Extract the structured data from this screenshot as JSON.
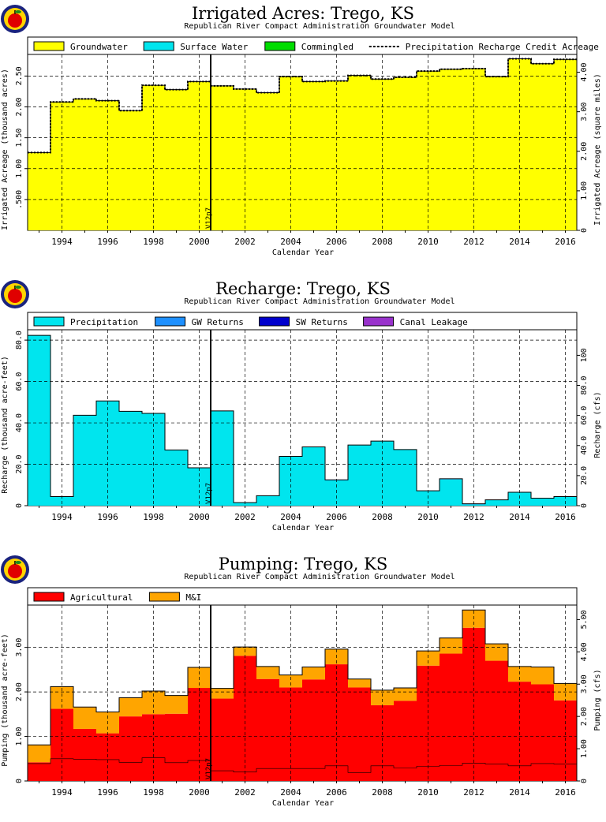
{
  "version_label": "V12p7",
  "x_tick_labels": [
    "1994",
    "1996",
    "1998",
    "2000",
    "2002",
    "2004",
    "2006",
    "2008",
    "2010",
    "2012",
    "2014",
    "2016"
  ],
  "colors": {
    "groundwater": "#ffff00",
    "surface_water": "#00e5ee",
    "commingled": "#00dd00",
    "precipitation": "#00e5ee",
    "gw_returns": "#1e90ff",
    "sw_returns": "#0000cd",
    "canal_leakage": "#9932cc",
    "agricultural": "#ff0000",
    "mi": "#ffa500"
  },
  "chart_data": [
    {
      "type": "bar",
      "title": "Irrigated Acres: Trego, KS",
      "subtitle": "Republican River Compact Administration Groundwater Model",
      "xlabel": "Calendar Year",
      "ylabel": "Irrigated Acreage (thousand acres)",
      "y2label": "Irrigated Acreage (square miles)",
      "x": [
        1993,
        1994,
        1995,
        1996,
        1997,
        1998,
        1999,
        2000,
        2001,
        2002,
        2003,
        2004,
        2005,
        2006,
        2007,
        2008,
        2009,
        2010,
        2011,
        2012,
        2013,
        2014,
        2015,
        2016
      ],
      "xlim": [
        1992.5,
        2016.5
      ],
      "ylim": [
        0,
        2.85
      ],
      "y2lim": [
        0,
        4.45
      ],
      "yticks": [
        ".500",
        "1.00",
        "1.50",
        "2.00",
        "2.50"
      ],
      "y2ticks": [
        "0",
        "1.00",
        "2.00",
        "3.00",
        "4.00"
      ],
      "grid": true,
      "legend": [
        "Groundwater",
        "Surface Water",
        "Commingled",
        "Precipitation Recharge Credit Acreage"
      ],
      "series": [
        {
          "name": "Groundwater",
          "values": [
            1.26,
            2.08,
            2.13,
            2.1,
            1.94,
            2.35,
            2.28,
            2.41,
            2.34,
            2.29,
            2.23,
            2.49,
            2.41,
            2.42,
            2.51,
            2.45,
            2.48,
            2.58,
            2.61,
            2.62,
            2.49,
            2.78,
            2.7,
            2.77
          ]
        },
        {
          "name": "Surface Water",
          "values": [
            0,
            0,
            0,
            0,
            0,
            0,
            0,
            0,
            0,
            0,
            0,
            0,
            0,
            0,
            0,
            0,
            0,
            0,
            0,
            0,
            0,
            0,
            0,
            0
          ]
        },
        {
          "name": "Commingled",
          "values": [
            0,
            0,
            0,
            0,
            0,
            0,
            0,
            0,
            0,
            0,
            0,
            0,
            0,
            0,
            0,
            0,
            0,
            0,
            0,
            0,
            0,
            0,
            0,
            0
          ]
        },
        {
          "name": "Precipitation Recharge Credit Acreage",
          "values": [
            1.26,
            2.08,
            2.13,
            2.1,
            1.94,
            2.35,
            2.28,
            2.41,
            2.34,
            2.29,
            2.23,
            2.49,
            2.41,
            2.42,
            2.51,
            2.45,
            2.48,
            2.58,
            2.61,
            2.62,
            2.49,
            2.78,
            2.7,
            2.77
          ]
        }
      ]
    },
    {
      "type": "bar",
      "title": "Recharge: Trego, KS",
      "subtitle": "Republican River Compact Administration Groundwater Model",
      "xlabel": "Calendar Year",
      "ylabel": "Recharge (thousand acre-feet)",
      "y2label": "Recharge (cfs)",
      "x": [
        1993,
        1994,
        1995,
        1996,
        1997,
        1998,
        1999,
        2000,
        2001,
        2002,
        2003,
        2004,
        2005,
        2006,
        2007,
        2008,
        2009,
        2010,
        2011,
        2012,
        2013,
        2014,
        2015,
        2016
      ],
      "xlim": [
        1992.5,
        2016.5
      ],
      "ylim": [
        0,
        85
      ],
      "y2lim": [
        0,
        117
      ],
      "yticks": [
        "0",
        "20.0",
        "40.0",
        "60.0",
        "80.0"
      ],
      "y2ticks": [
        "0",
        "20.0",
        "40.0",
        "60.0",
        "80.0",
        "100"
      ],
      "grid": true,
      "legend": [
        "Precipitation",
        "GW Returns",
        "SW Returns",
        "Canal Leakage"
      ],
      "series": [
        {
          "name": "Precipitation",
          "values": [
            82.3,
            4.4,
            43.7,
            50.6,
            45.6,
            44.6,
            26.9,
            18.3,
            45.8,
            1.5,
            4.8,
            23.8,
            28.4,
            12.2,
            29.3,
            31.2,
            27.1,
            7.2,
            12.7,
            0.6,
            2.8,
            6.5,
            3.6,
            4.4
          ]
        },
        {
          "name": "GW Returns",
          "values": [
            0,
            0,
            0,
            0,
            0,
            0,
            0,
            0,
            0,
            0,
            0,
            0,
            0,
            0.3,
            0,
            0,
            0,
            0,
            0.3,
            0.3,
            0,
            0,
            0,
            0
          ]
        },
        {
          "name": "SW Returns",
          "values": [
            0,
            0,
            0,
            0,
            0,
            0,
            0,
            0,
            0,
            0,
            0,
            0,
            0,
            0,
            0,
            0,
            0,
            0,
            0,
            0,
            0,
            0,
            0,
            0
          ]
        },
        {
          "name": "Canal Leakage",
          "values": [
            0,
            0,
            0,
            0,
            0,
            0,
            0,
            0,
            0,
            0,
            0,
            0,
            0,
            0,
            0,
            0,
            0,
            0,
            0,
            0,
            0,
            0,
            0,
            0
          ]
        }
      ]
    },
    {
      "type": "bar",
      "title": "Pumping: Trego, KS",
      "subtitle": "Republican River Compact Administration Groundwater Model",
      "xlabel": "Calendar Year",
      "ylabel": "Pumping (thousand acre-feet)",
      "y2label": "Pumping (cfs)",
      "x": [
        1993,
        1994,
        1995,
        1996,
        1997,
        1998,
        1999,
        2000,
        2001,
        2002,
        2003,
        2004,
        2005,
        2006,
        2007,
        2008,
        2009,
        2010,
        2011,
        2012,
        2013,
        2014,
        2015,
        2016
      ],
      "xlim": [
        1992.5,
        2016.5
      ],
      "ylim": [
        0,
        3.95
      ],
      "y2lim": [
        0,
        5.45
      ],
      "yticks": [
        "0",
        "1.00",
        "2.00",
        "3.00"
      ],
      "y2ticks": [
        "0",
        "1.00",
        "2.00",
        "3.00",
        "4.00",
        "5.00"
      ],
      "grid": true,
      "legend": [
        "Agricultural",
        "M&I"
      ],
      "series": [
        {
          "name": "Agricultural",
          "values": [
            0.42,
            1.62,
            1.17,
            1.07,
            1.45,
            1.5,
            1.51,
            2.09,
            1.85,
            2.81,
            2.29,
            2.1,
            2.28,
            2.62,
            2.1,
            1.7,
            1.8,
            2.59,
            2.86,
            3.44,
            2.7,
            2.23,
            2.17,
            1.81
          ]
        },
        {
          "name": "M&I",
          "values": [
            0.39,
            0.5,
            0.49,
            0.48,
            0.42,
            0.52,
            0.41,
            0.46,
            0.23,
            0.2,
            0.28,
            0.28,
            0.28,
            0.34,
            0.19,
            0.34,
            0.29,
            0.33,
            0.35,
            0.4,
            0.38,
            0.34,
            0.39,
            0.38
          ]
        }
      ]
    }
  ]
}
